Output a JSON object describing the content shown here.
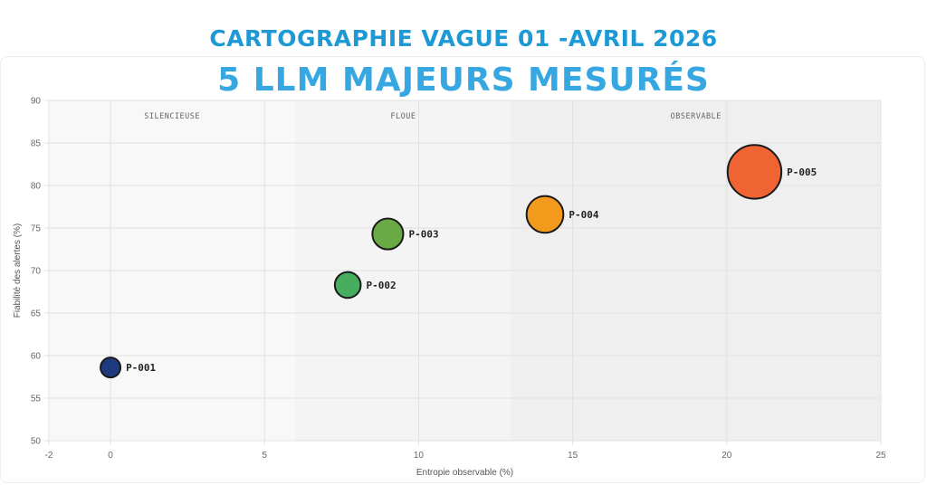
{
  "header": {
    "title": "CARTOGRAPHIE VAGUE 01 -AVRIL 2026",
    "subtitle": "5 LLM MAJEURS MESURÉS"
  },
  "chart_data": {
    "type": "scatter",
    "xlabel": "Entropie observable (%)",
    "ylabel": "Fiabilité des alertes (%)",
    "xlim": [
      -2,
      25
    ],
    "ylim": [
      50,
      90
    ],
    "x_ticks": [
      -2,
      0,
      5,
      10,
      15,
      20,
      25
    ],
    "y_ticks": [
      50,
      55,
      60,
      65,
      70,
      75,
      80,
      85,
      90
    ],
    "grid": true,
    "zones": [
      {
        "label": "SILENCIEUSE",
        "x_range": [
          -2,
          6
        ],
        "color": "#f8f8f8"
      },
      {
        "label": "FLOUE",
        "x_range": [
          6,
          13
        ],
        "color": "#f4f4f4"
      },
      {
        "label": "OBSERVABLE",
        "x_range": [
          13,
          25
        ],
        "color": "#efefef"
      }
    ],
    "points": [
      {
        "label": "P-001",
        "x": 0,
        "y": 58.6,
        "size": 1.0,
        "color": "#1f3b80"
      },
      {
        "label": "P-002",
        "x": 7.7,
        "y": 68.3,
        "size": 1.3,
        "color": "#46ad5f"
      },
      {
        "label": "P-003",
        "x": 9.0,
        "y": 74.3,
        "size": 1.55,
        "color": "#6aaa45"
      },
      {
        "label": "P-004",
        "x": 14.1,
        "y": 76.6,
        "size": 1.85,
        "color": "#f39a1c"
      },
      {
        "label": "P-005",
        "x": 20.9,
        "y": 81.6,
        "size": 2.7,
        "color": "#f06434"
      }
    ]
  }
}
